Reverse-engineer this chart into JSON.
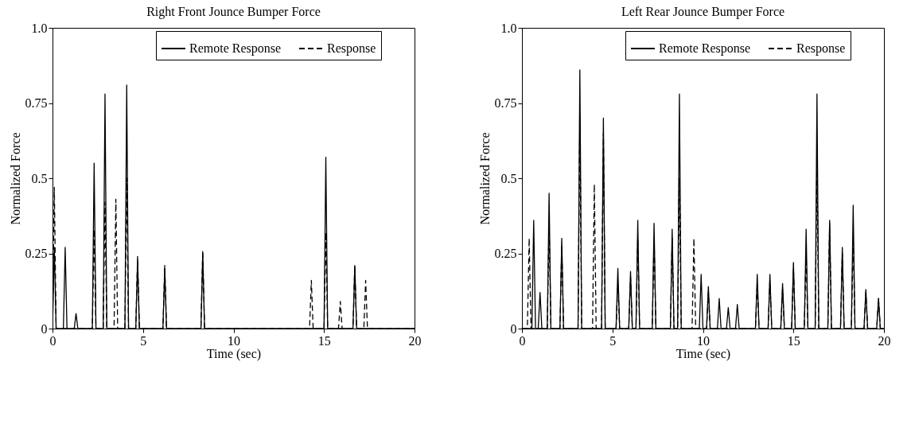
{
  "chart_data": [
    {
      "type": "line",
      "title": "Right Front Jounce Bumper Force",
      "xlabel": "Time (sec)",
      "ylabel": "Normalized Force",
      "xlim": [
        0,
        20
      ],
      "xticks": [
        0,
        5,
        10,
        15,
        20
      ],
      "ylim": [
        0,
        1
      ],
      "yticks": [
        0,
        0.25,
        0.5,
        0.75,
        {
          "value": 1,
          "label": "1.0"
        }
      ],
      "grid": false,
      "legend": "top",
      "series": [
        {
          "name": "Remote Response",
          "color": "#000000",
          "line_style": "solid",
          "x": [
            0,
            0.1,
            0.2,
            0.6,
            0.7,
            0.8,
            1.2,
            1.3,
            1.4,
            2.2,
            2.3,
            2.4,
            2.8,
            2.9,
            3.0,
            4.0,
            4.1,
            4.2,
            4.6,
            4.7,
            4.8,
            6.1,
            6.2,
            6.3,
            8.2,
            8.3,
            8.4,
            15.0,
            15.1,
            15.2,
            16.6,
            16.7,
            16.8,
            20
          ],
          "values": [
            0,
            0.27,
            0,
            0,
            0.27,
            0,
            0,
            0.05,
            0,
            0,
            0.55,
            0,
            0,
            0.78,
            0,
            0,
            0.81,
            0,
            0,
            0.23,
            0,
            0,
            0.2,
            0,
            0,
            0.25,
            0,
            0,
            0.57,
            0,
            0,
            0.21,
            0,
            0
          ]
        },
        {
          "name": "Response",
          "color": "#000000",
          "line_style": "dashed",
          "x": [
            0,
            0.1,
            0.2,
            2.2,
            2.3,
            2.4,
            2.8,
            2.9,
            3.0,
            3.4,
            3.5,
            3.6,
            4.0,
            4.1,
            4.2,
            4.6,
            4.7,
            4.8,
            6.1,
            6.2,
            6.3,
            8.2,
            8.3,
            8.4,
            14.2,
            14.3,
            14.4,
            15.0,
            15.1,
            15.2,
            15.8,
            15.9,
            16.0,
            16.6,
            16.7,
            16.8,
            17.2,
            17.3,
            17.4,
            20
          ],
          "values": [
            0,
            0.47,
            0,
            0,
            0.33,
            0,
            0,
            0.42,
            0,
            0,
            0.43,
            0,
            0,
            0.5,
            0,
            0,
            0.24,
            0,
            0,
            0.21,
            0,
            0,
            0.26,
            0,
            0,
            0.16,
            0,
            0,
            0.32,
            0,
            0,
            0.09,
            0,
            0,
            0.21,
            0,
            0,
            0.16,
            0,
            0
          ]
        }
      ]
    },
    {
      "type": "line",
      "title": "Left Rear Jounce Bumper Force",
      "xlabel": "Time (sec)",
      "ylabel": "Normalized Force",
      "xlim": [
        0,
        20
      ],
      "xticks": [
        0,
        5,
        10,
        15,
        20
      ],
      "ylim": [
        0,
        1
      ],
      "yticks": [
        0,
        0.25,
        0.5,
        0.75,
        {
          "value": 1,
          "label": "1.0"
        }
      ],
      "grid": false,
      "legend": "top",
      "series": [
        {
          "name": "Remote Response",
          "color": "#000000",
          "line_style": "solid",
          "x": [
            0,
            0.55,
            0.65,
            0.75,
            0.9,
            1.0,
            1.1,
            1.4,
            1.5,
            1.6,
            2.1,
            2.2,
            2.3,
            3.1,
            3.2,
            3.3,
            4.4,
            4.5,
            4.6,
            5.2,
            5.3,
            5.4,
            5.9,
            6.0,
            6.1,
            6.3,
            6.4,
            6.5,
            7.2,
            7.3,
            7.4,
            8.2,
            8.3,
            8.4,
            8.6,
            8.7,
            8.8,
            9.8,
            9.9,
            10.0,
            10.2,
            10.3,
            10.4,
            10.8,
            10.9,
            11.0,
            11.3,
            11.4,
            11.5,
            11.8,
            11.9,
            12.0,
            12.9,
            13.0,
            13.1,
            13.6,
            13.7,
            13.8,
            14.3,
            14.4,
            14.5,
            14.9,
            15.0,
            15.1,
            15.6,
            15.7,
            15.8,
            16.2,
            16.3,
            16.4,
            16.9,
            17.0,
            17.1,
            17.6,
            17.7,
            17.8,
            18.2,
            18.3,
            18.4,
            18.9,
            19.0,
            19.1,
            19.6,
            19.7,
            19.8,
            20
          ],
          "values": [
            0,
            0,
            0.36,
            0,
            0,
            0.12,
            0,
            0,
            0.45,
            0,
            0,
            0.3,
            0,
            0,
            0.86,
            0,
            0,
            0.7,
            0,
            0,
            0.2,
            0,
            0,
            0.19,
            0,
            0,
            0.36,
            0,
            0,
            0.35,
            0,
            0,
            0.33,
            0,
            0,
            0.78,
            0,
            0,
            0.18,
            0,
            0,
            0.14,
            0,
            0,
            0.1,
            0,
            0,
            0.07,
            0,
            0,
            0.08,
            0,
            0,
            0.18,
            0,
            0,
            0.18,
            0,
            0,
            0.15,
            0,
            0,
            0.22,
            0,
            0,
            0.33,
            0,
            0,
            0.78,
            0,
            0,
            0.36,
            0,
            0,
            0.27,
            0,
            0,
            0.41,
            0,
            0,
            0.13,
            0,
            0,
            0.1,
            0,
            0
          ]
        },
        {
          "name": "Response",
          "color": "#000000",
          "line_style": "dashed",
          "x": [
            0,
            0.3,
            0.4,
            0.5,
            1.4,
            1.5,
            1.6,
            2.1,
            2.2,
            2.3,
            3.1,
            3.2,
            3.3,
            3.9,
            4.0,
            4.1,
            4.4,
            4.5,
            4.6,
            5.2,
            5.3,
            5.4,
            5.9,
            6.0,
            6.1,
            6.3,
            6.4,
            6.5,
            7.2,
            7.3,
            7.4,
            8.2,
            8.3,
            8.4,
            8.6,
            8.7,
            8.8,
            9.4,
            9.5,
            9.6,
            10.2,
            10.3,
            10.4,
            12.9,
            13.0,
            13.1,
            13.6,
            13.7,
            13.8,
            14.3,
            14.4,
            14.5,
            14.9,
            15.0,
            15.1,
            15.6,
            15.7,
            15.8,
            16.2,
            16.3,
            16.4,
            16.9,
            17.0,
            17.1,
            17.6,
            17.7,
            17.8,
            18.2,
            18.3,
            18.4,
            18.9,
            19.0,
            19.1,
            19.6,
            19.7,
            19.8,
            20
          ],
          "values": [
            0,
            0,
            0.3,
            0,
            0,
            0.35,
            0,
            0,
            0.28,
            0,
            0,
            0.7,
            0,
            0,
            0.48,
            0,
            0,
            0.65,
            0,
            0,
            0.15,
            0,
            0,
            0.17,
            0,
            0,
            0.3,
            0,
            0,
            0.3,
            0,
            0,
            0.3,
            0,
            0,
            0.5,
            0,
            0,
            0.3,
            0,
            0,
            0.12,
            0,
            0,
            0.15,
            0,
            0,
            0.16,
            0,
            0,
            0.13,
            0,
            0,
            0.2,
            0,
            0,
            0.25,
            0,
            0,
            0.55,
            0,
            0,
            0.35,
            0,
            0,
            0.25,
            0,
            0,
            0.3,
            0,
            0,
            0.12,
            0,
            0,
            0.1,
            0,
            0
          ]
        }
      ]
    }
  ]
}
